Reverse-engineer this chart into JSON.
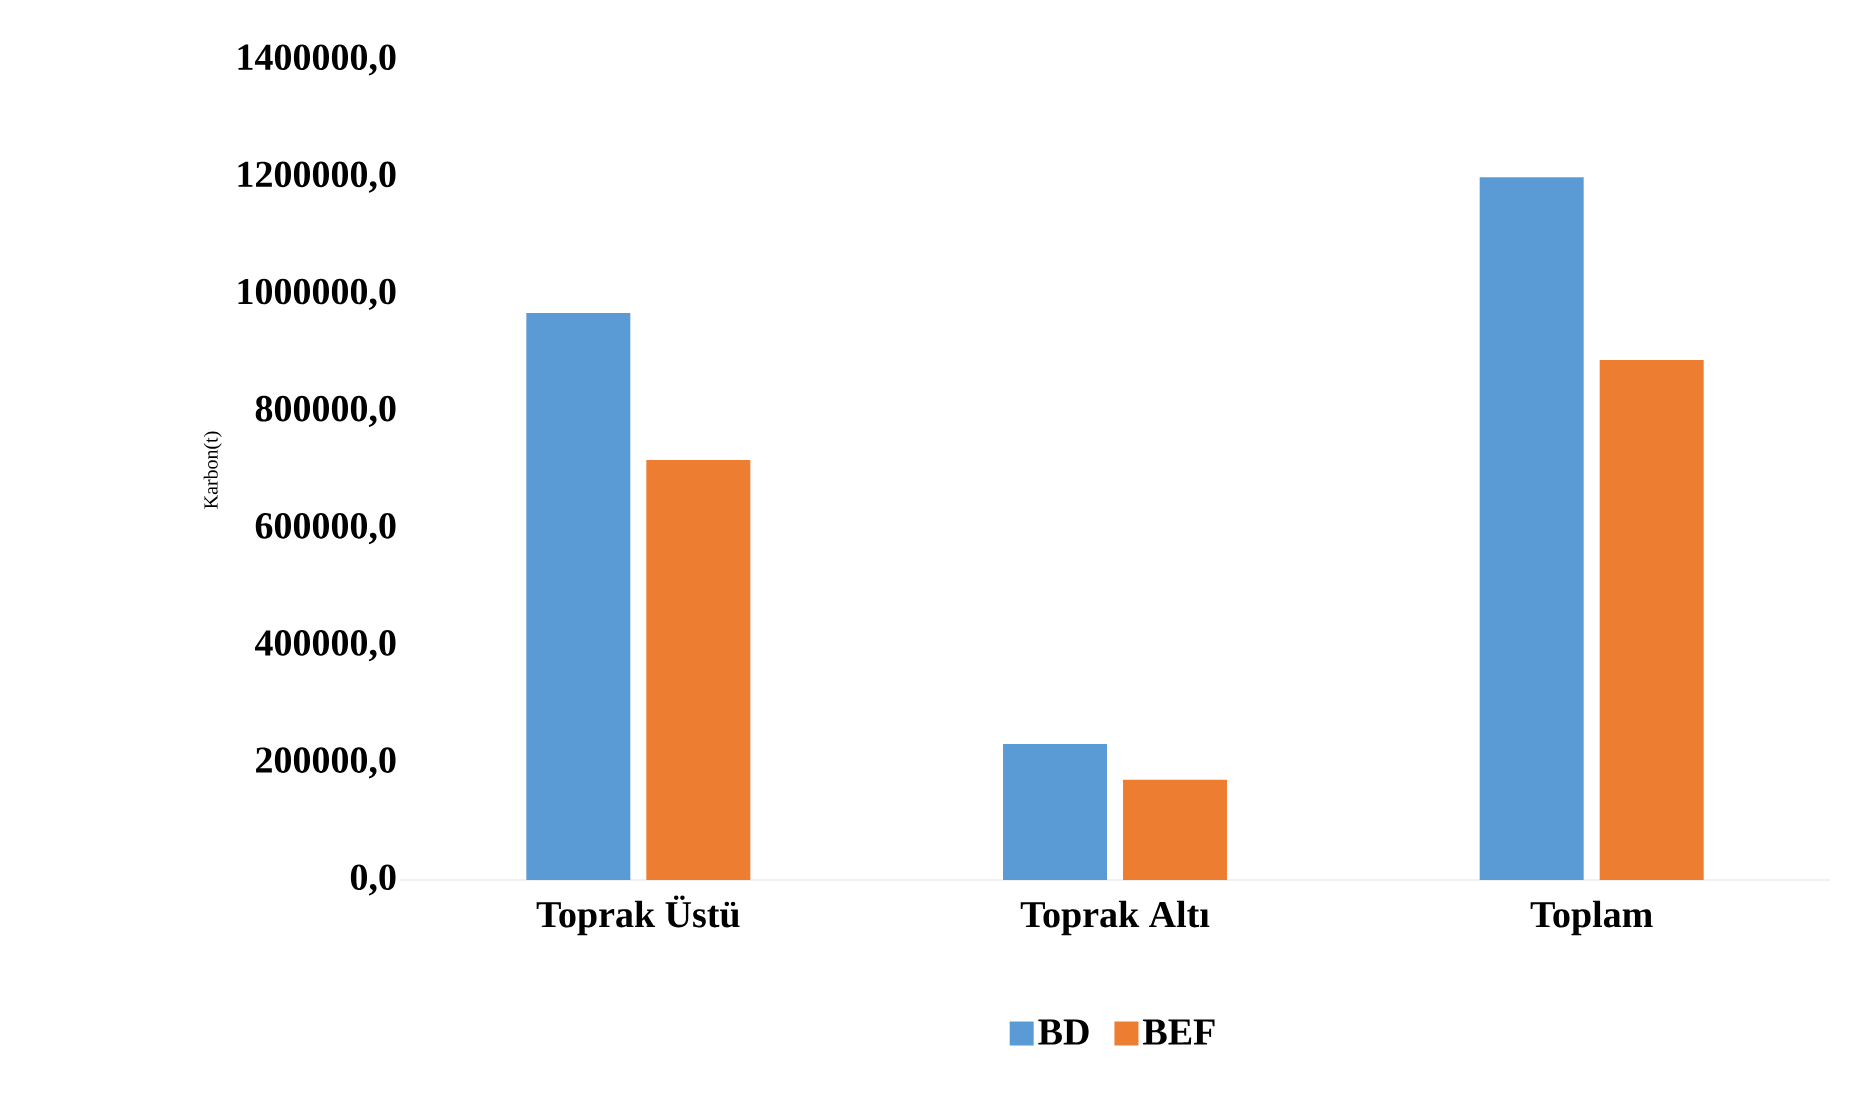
{
  "chart_data": {
    "type": "bar",
    "ylabel": "Karbon(t)",
    "categories": [
      "Toprak Üstü",
      "Toprak Altı",
      "Toplam"
    ],
    "series": [
      {
        "name": "BD",
        "color": "#5b9bd5",
        "values": [
          968000,
          232000,
          1200000
        ]
      },
      {
        "name": "BEF",
        "color": "#ed7d31",
        "values": [
          717000,
          171000,
          888000
        ]
      }
    ],
    "ylim": [
      0,
      1400000
    ],
    "yticks": [
      {
        "value": 0,
        "label": "0,0"
      },
      {
        "value": 200000,
        "label": "200000,0"
      },
      {
        "value": 400000,
        "label": "400000,0"
      },
      {
        "value": 600000,
        "label": "600000,0"
      },
      {
        "value": 800000,
        "label": "800000,0"
      },
      {
        "value": 1000000,
        "label": "1000000,0"
      },
      {
        "value": 1200000,
        "label": "1200000,0"
      },
      {
        "value": 1400000,
        "label": "1400000,0"
      }
    ],
    "legend": "bottom"
  }
}
